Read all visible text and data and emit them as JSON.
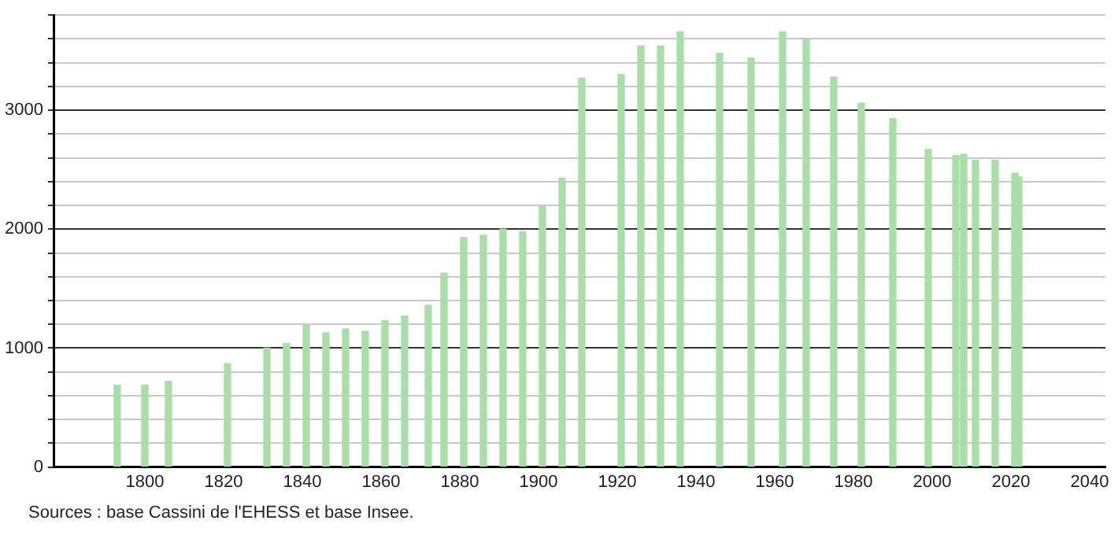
{
  "chart_data": {
    "type": "bar",
    "x": [
      1793,
      1800,
      1806,
      1821,
      1831,
      1836,
      1841,
      1846,
      1851,
      1856,
      1861,
      1866,
      1872,
      1876,
      1881,
      1886,
      1891,
      1896,
      1901,
      1906,
      1911,
      1921,
      1926,
      1931,
      1936,
      1946,
      1954,
      1962,
      1968,
      1975,
      1982,
      1990,
      1999,
      2006,
      2008,
      2011,
      2016,
      2021,
      2022
    ],
    "values": [
      690,
      690,
      720,
      870,
      1000,
      1040,
      1190,
      1130,
      1160,
      1140,
      1230,
      1270,
      1360,
      1630,
      1930,
      1950,
      2000,
      1980,
      2200,
      2430,
      3270,
      3300,
      3540,
      3540,
      3660,
      3480,
      3440,
      3660,
      3600,
      3280,
      3060,
      2930,
      2670,
      2620,
      2630,
      2580,
      2580,
      2470,
      2440
    ],
    "color": "#a8dfa8",
    "xlim": [
      1777,
      2044
    ],
    "xticks": [
      1800,
      1820,
      1840,
      1860,
      1880,
      1900,
      1920,
      1940,
      1960,
      1980,
      2000,
      2020,
      2040
    ],
    "ylim": [
      0,
      3800
    ],
    "yticks": [
      0,
      {
        "value": 200,
        "label": null
      },
      {
        "value": 400,
        "label": null
      },
      {
        "value": 600,
        "label": null
      },
      {
        "value": 800,
        "label": null
      },
      1000,
      {
        "value": 1200,
        "label": null
      },
      {
        "value": 1400,
        "label": null
      },
      {
        "value": 1600,
        "label": null
      },
      {
        "value": 1800,
        "label": null
      },
      2000,
      {
        "value": 2200,
        "label": null
      },
      {
        "value": 2400,
        "label": null
      },
      {
        "value": 2600,
        "label": null
      },
      {
        "value": 2800,
        "label": null
      },
      3000,
      {
        "value": 3200,
        "label": null
      },
      {
        "value": 3400,
        "label": null
      },
      {
        "value": 3600,
        "label": null
      },
      {
        "value": 3800,
        "label": null
      }
    ],
    "grid": "y",
    "annotations": [
      "Sources : base Cassini de l'EHESS et base Insee."
    ]
  }
}
